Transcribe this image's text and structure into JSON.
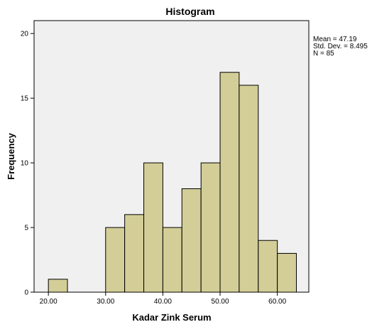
{
  "chart_data": {
    "type": "bar",
    "title": "Histogram",
    "xlabel": "Kadar Zink Serum",
    "ylabel": "Frequency",
    "ylim": [
      0,
      21
    ],
    "xlim": [
      17.5,
      65.5
    ],
    "grid": false,
    "bin_width": 3.33,
    "bins": [
      {
        "start": 20.0,
        "end": 23.33,
        "value": 1
      },
      {
        "start": 23.33,
        "end": 26.67,
        "value": 0
      },
      {
        "start": 26.67,
        "end": 30.0,
        "value": 0
      },
      {
        "start": 30.0,
        "end": 33.33,
        "value": 5
      },
      {
        "start": 33.33,
        "end": 36.67,
        "value": 6
      },
      {
        "start": 36.67,
        "end": 40.0,
        "value": 10
      },
      {
        "start": 40.0,
        "end": 43.33,
        "value": 5
      },
      {
        "start": 43.33,
        "end": 46.67,
        "value": 8
      },
      {
        "start": 46.67,
        "end": 50.0,
        "value": 10
      },
      {
        "start": 50.0,
        "end": 53.33,
        "value": 17
      },
      {
        "start": 53.33,
        "end": 56.67,
        "value": 16
      },
      {
        "start": 56.67,
        "end": 60.0,
        "value": 4
      },
      {
        "start": 60.0,
        "end": 63.33,
        "value": 3
      }
    ],
    "x_ticks": [
      20,
      30,
      40,
      50,
      60
    ],
    "x_tick_labels": [
      "20.00",
      "30.00",
      "40.00",
      "50.00",
      "60.00"
    ],
    "y_ticks": [
      0,
      5,
      10,
      15,
      20
    ],
    "y_tick_labels": [
      "0",
      "5",
      "10",
      "15",
      "20"
    ],
    "stats": [
      "Mean = 47.19",
      "Std. Dev. = 8.495",
      "N = 85"
    ],
    "colors": {
      "bar_fill": "#d3ce97",
      "bar_stroke": "#000000",
      "plot_bg": "#f0f0f0",
      "frame": "#000000"
    }
  }
}
